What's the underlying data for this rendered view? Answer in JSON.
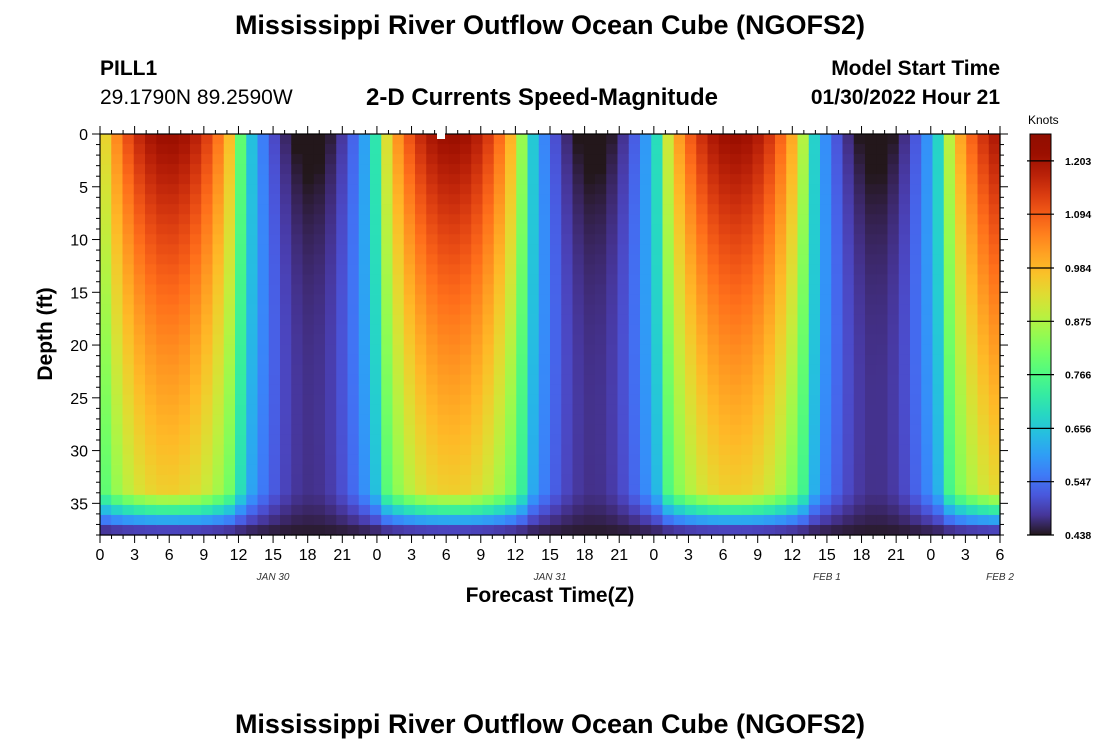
{
  "header": {
    "title": "Mississippi River Outflow Ocean Cube (NGOFS2)",
    "station": "PILL1",
    "coords": "29.1790N  89.2590W",
    "subtitle": "2-D Currents Speed-Magnitude",
    "model_start_label": "Model Start Time",
    "model_start_value": "01/30/2022 Hour 21"
  },
  "footer": {
    "title": "Mississippi River Outflow Ocean Cube (NGOFS2)"
  },
  "chart_data": {
    "type": "heatmap",
    "xlabel": "Forecast Time(Z)",
    "ylabel": "Depth (ft)",
    "x_tick_labels": [
      "0",
      "3",
      "6",
      "9",
      "12",
      "15",
      "18",
      "21",
      "0",
      "3",
      "6",
      "9",
      "12",
      "15",
      "18",
      "21",
      "0",
      "3",
      "6",
      "9",
      "12",
      "15",
      "18",
      "21",
      "0",
      "3",
      "6"
    ],
    "date_labels": [
      {
        "label": "JAN 30",
        "hour": 15
      },
      {
        "label": "JAN 31",
        "hour": 39
      },
      {
        "label": "FEB 1",
        "hour": 63
      },
      {
        "label": "FEB 2",
        "hour": 78
      }
    ],
    "x_range_hours": [
      0,
      78
    ],
    "y_ticks": [
      0,
      5,
      10,
      15,
      20,
      25,
      30,
      35
    ],
    "y_range": [
      0,
      38
    ],
    "y_inverted": true,
    "colorbar": {
      "unit": "Knots",
      "range": [
        0.438,
        1.258
      ],
      "ticks": [
        "1.203",
        "1.094",
        "0.984",
        "0.875",
        "0.766",
        "0.656",
        "0.547",
        "0.438"
      ],
      "tick_values": [
        1.203,
        1.094,
        0.984,
        0.875,
        0.766,
        0.656,
        0.547,
        0.438
      ],
      "colormap": "turbo"
    },
    "tidal_model": {
      "mean": 0.82,
      "amplitude": 0.4,
      "period_hours": 24.5,
      "peak_hour": 6.0,
      "depth_decay_ft": 32,
      "bottom_min": 0.44,
      "bottom_layer_ft": 4,
      "sharpness": 1.6,
      "grid_nx": 80,
      "grid_ny": 40
    }
  }
}
